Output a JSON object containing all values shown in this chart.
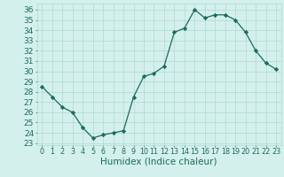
{
  "x": [
    0,
    1,
    2,
    3,
    4,
    5,
    6,
    7,
    8,
    9,
    10,
    11,
    12,
    13,
    14,
    15,
    16,
    17,
    18,
    19,
    20,
    21,
    22,
    23
  ],
  "y": [
    28.5,
    27.5,
    26.5,
    26.0,
    24.5,
    23.5,
    23.8,
    24.0,
    24.2,
    27.5,
    29.5,
    29.8,
    30.5,
    33.8,
    34.2,
    36.0,
    35.2,
    35.5,
    35.5,
    35.0,
    33.8,
    32.0,
    30.8,
    30.2
  ],
  "line_color": "#1a6b5a",
  "marker": "D",
  "marker_size": 2.2,
  "bg_color": "#d4f0ec",
  "grid_color": "#b0d8d2",
  "xlabel": "Humidex (Indice chaleur)",
  "ylabel_ticks": [
    23,
    24,
    25,
    26,
    27,
    28,
    29,
    30,
    31,
    32,
    33,
    34,
    35,
    36
  ],
  "ylim": [
    22.8,
    36.6
  ],
  "xlim": [
    -0.5,
    23.5
  ],
  "xticks": [
    0,
    1,
    2,
    3,
    4,
    5,
    6,
    7,
    8,
    9,
    10,
    11,
    12,
    13,
    14,
    15,
    16,
    17,
    18,
    19,
    20,
    21,
    22,
    23
  ],
  "tick_color": "#1a6b5a",
  "label_color": "#1a6b5a",
  "label_fontsize": 7.5,
  "tick_fontsize": 6.5,
  "x_tick_fontsize": 5.8,
  "linewidth": 0.9
}
